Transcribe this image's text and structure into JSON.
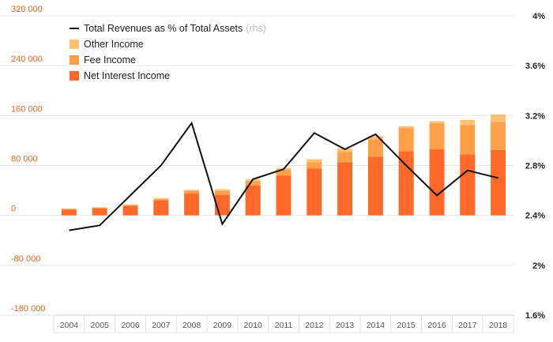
{
  "chart_data": {
    "type": "bar",
    "stacked": true,
    "categories": [
      "2004",
      "2005",
      "2006",
      "2007",
      "2008",
      "2009",
      "2010",
      "2011",
      "2012",
      "2013",
      "2014",
      "2015",
      "2016",
      "2017",
      "2018"
    ],
    "series": [
      {
        "name": "Net Interest Income",
        "axis": "left",
        "color": "#ff6a2b",
        "values": [
          9000,
          11000,
          15000,
          24000,
          35000,
          33000,
          48000,
          64000,
          75000,
          85000,
          94000,
          103000,
          106000,
          98000,
          105000
        ]
      },
      {
        "name": "Fee Income",
        "axis": "left",
        "color": "#ffa048",
        "values": [
          1500,
          1500,
          2000,
          2500,
          4000,
          6000,
          7000,
          9000,
          10000,
          17000,
          28000,
          37000,
          42000,
          47000,
          45000
        ]
      },
      {
        "name": "Other Income",
        "axis": "left",
        "color": "#ffc070",
        "values": [
          500,
          500,
          500,
          1000,
          2000,
          3000,
          3000,
          3000,
          5000,
          5000,
          5000,
          3000,
          3000,
          8000,
          12000
        ]
      },
      {
        "name": "Total Revenues as % of Total Assets",
        "axis": "right",
        "type": "line",
        "color": "#111111",
        "values": [
          2.28,
          2.32,
          2.56,
          2.8,
          3.14,
          2.33,
          2.69,
          2.77,
          3.06,
          2.93,
          3.05,
          2.8,
          2.56,
          2.76,
          2.7
        ]
      }
    ],
    "left_axis": {
      "min": -160000,
      "max": 320000,
      "step": 80000,
      "tick_labels": [
        "-160 000",
        "-80 000",
        "0",
        "80 000",
        "160 000",
        "240 000",
        "320 000"
      ]
    },
    "right_axis": {
      "min": 1.6,
      "max": 4.0,
      "step": 0.4,
      "tick_labels": [
        "1.6%",
        "2%",
        "2.4%",
        "2.8%",
        "3.2%",
        "3.6%",
        "4%"
      ]
    },
    "legend": {
      "position": "top-left",
      "items": [
        {
          "label": "Total Revenues as % of Total Assets",
          "note": "(rhs)",
          "marker": "line",
          "color": "#111111"
        },
        {
          "label": "Other Income",
          "marker": "box",
          "color": "#ffc070"
        },
        {
          "label": "Fee Income",
          "marker": "box",
          "color": "#ffa048"
        },
        {
          "label": "Net Interest Income",
          "marker": "box",
          "color": "#ff6a2b"
        }
      ]
    },
    "grid": true
  }
}
